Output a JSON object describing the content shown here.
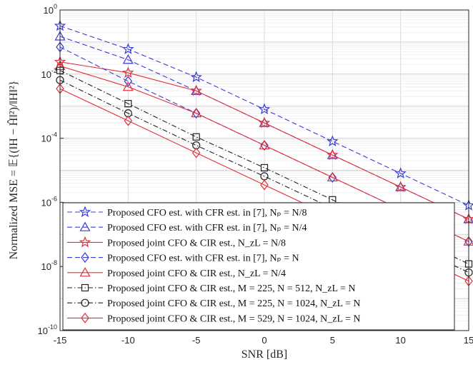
{
  "chart_data": {
    "type": "line",
    "xlabel": "SNR [dB]",
    "ylabel": "Normalized MSE = 𝔼{(‖H − Ĥ‖²)/‖H‖²}",
    "xlim": [
      -15,
      15
    ],
    "ylim": [
      1e-10,
      1
    ],
    "yscale": "log",
    "grid": true,
    "legend_position": "bottom-right",
    "x_ticks": [
      -15,
      -10,
      -5,
      0,
      5,
      10,
      15
    ],
    "x_tick_labels": [
      "-15",
      "-10",
      "-5",
      "0",
      "5",
      "10",
      "15"
    ],
    "y_ticks": [
      {
        "base": "10",
        "exp": "0"
      },
      {
        "base": "10",
        "exp": "-2"
      },
      {
        "base": "10",
        "exp": "-4"
      },
      {
        "base": "10",
        "exp": "-6"
      },
      {
        "base": "10",
        "exp": "-8"
      },
      {
        "base": "10",
        "exp": "-10"
      }
    ],
    "x": [
      -15,
      -10,
      -5,
      0,
      5,
      10,
      15
    ],
    "series": [
      {
        "name": "Proposed CFO est. with CFR est. in [7], N_p = N/8",
        "legend": "Proposed CFO est. with CFR est. in [7], Nₚ = N/8",
        "color": "#3b3bd6",
        "dash": "dashed",
        "marker": "star",
        "values": [
          0.32,
          0.06,
          0.008,
          0.0008,
          8e-05,
          8e-06,
          8e-07
        ]
      },
      {
        "name": "Proposed CFO est. with CFR est. in [7], N_p = N/4",
        "legend": "Proposed CFO est. with CFR est. in [7], Nₚ = N/4",
        "color": "#3b3bd6",
        "dash": "dashed",
        "marker": "triangle",
        "values": [
          0.15,
          0.028,
          0.003,
          0.0003,
          3e-05,
          3e-06,
          3e-07
        ]
      },
      {
        "name": "Proposed joint CFO & CIR est., N_zL = N/8",
        "legend": "Proposed joint CFO & CIR est., N_zL = N/8",
        "color": "#e0303a",
        "dash": "solid",
        "marker": "star",
        "values": [
          0.024,
          0.011,
          0.003,
          0.0003,
          3e-05,
          3e-06,
          3e-07
        ]
      },
      {
        "name": "Proposed CFO est. with CFR est. in [7], N_p = N",
        "legend": "Proposed CFO est. with CFR est. in [7], Nₚ = N",
        "color": "#3b3bd6",
        "dash": "dashed",
        "marker": "diamond",
        "values": [
          0.07,
          0.006,
          0.0006,
          6e-05,
          6e-06,
          6e-07,
          6e-08
        ]
      },
      {
        "name": "Proposed joint CFO & CIR est., N_zL = N/4",
        "legend": "Proposed joint CFO & CIR est., N_zL = N/4",
        "color": "#e0303a",
        "dash": "solid",
        "marker": "triangle",
        "values": [
          0.018,
          0.004,
          0.0006,
          6e-05,
          6e-06,
          6e-07,
          6e-08
        ]
      },
      {
        "name": "Proposed joint CFO & CIR est., M = 225, N = 512, N_zL = N",
        "legend": "Proposed joint CFO & CIR est., M = 225, N = 512, N_zL = N",
        "color": "#222222",
        "dash": "dashdot",
        "marker": "square",
        "values": [
          0.013,
          0.0012,
          0.00011,
          1.2e-05,
          1.2e-06,
          1.2e-07,
          1.2e-08
        ]
      },
      {
        "name": "Proposed joint CFO & CIR est., M = 225, N = 1024, N_zL = N",
        "legend": "Proposed joint CFO & CIR est., M = 225, N = 1024, N_zL = N",
        "color": "#222222",
        "dash": "dashdot",
        "marker": "circle",
        "values": [
          0.0065,
          0.0006,
          6e-05,
          6.5e-06,
          6.5e-07,
          6.5e-08,
          6.5e-09
        ]
      },
      {
        "name": "Proposed joint CFO & CIR est., M = 529, N = 1024, N_zL = N",
        "legend": "Proposed joint CFO & CIR est., M = 529, N = 1024, N_zL = N",
        "color": "#e0303a",
        "dash": "solid",
        "marker": "diamond",
        "values": [
          0.0035,
          0.00035,
          3.5e-05,
          3.5e-06,
          3.5e-07,
          3.5e-08,
          3.5e-09
        ]
      }
    ]
  }
}
